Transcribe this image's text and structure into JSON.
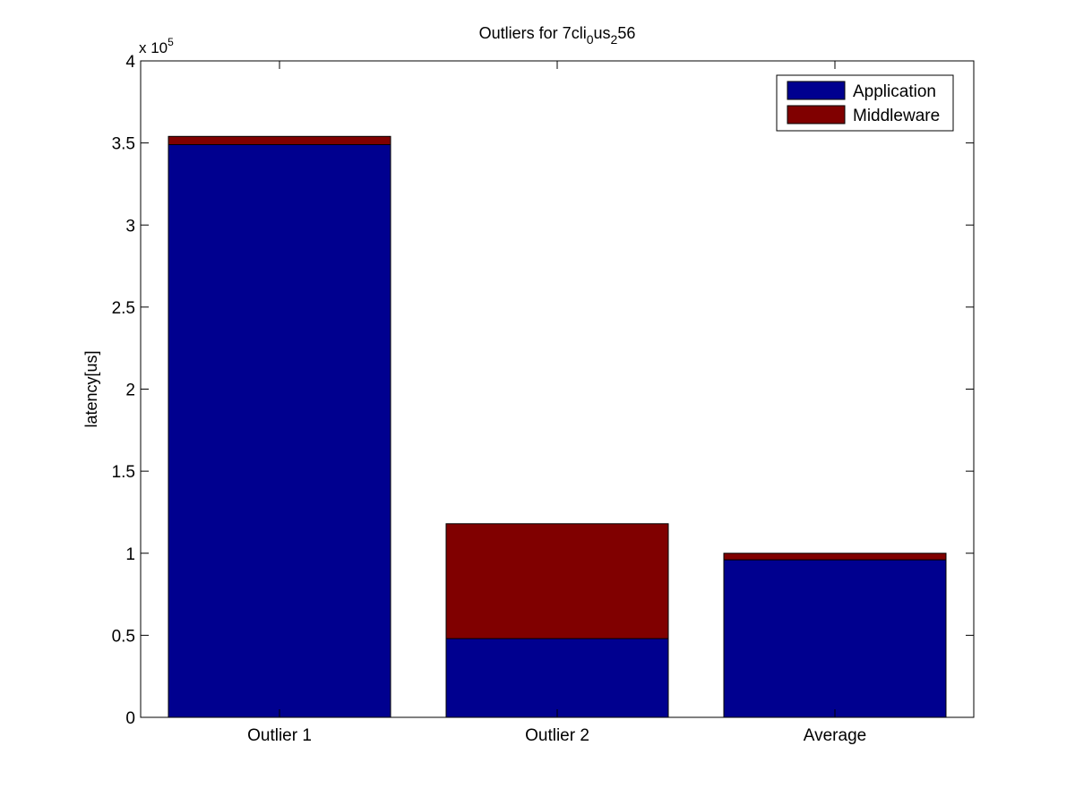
{
  "chart_data": {
    "type": "bar",
    "stacked": true,
    "title": "Outliers for 7cli_0us_256",
    "title_parts": [
      {
        "text": "Outliers for 7cli",
        "sub": false
      },
      {
        "text": "0",
        "sub": true
      },
      {
        "text": "us",
        "sub": false
      },
      {
        "text": "2",
        "sub": true
      },
      {
        "text": "56",
        "sub": false
      }
    ],
    "xlabel": "",
    "ylabel": "latency[us]",
    "categories": [
      "Outlier 1",
      "Outlier 2",
      "Average"
    ],
    "series": [
      {
        "name": "Application",
        "color": "#00008F",
        "values": [
          349000,
          48000,
          96000
        ]
      },
      {
        "name": "Middleware",
        "color": "#800000",
        "values": [
          5000,
          70000,
          4000
        ]
      }
    ],
    "ylim": [
      0,
      400000
    ],
    "y_ticks": [
      0,
      50000,
      100000,
      150000,
      200000,
      250000,
      300000,
      350000,
      400000
    ],
    "y_tick_labels": [
      "0",
      "0.5",
      "1",
      "1.5",
      "2",
      "2.5",
      "3",
      "3.5",
      "4"
    ],
    "y_exponent_base": "x 10",
    "y_exponent_power": "5",
    "legend_position": "top-right",
    "grid": false
  }
}
